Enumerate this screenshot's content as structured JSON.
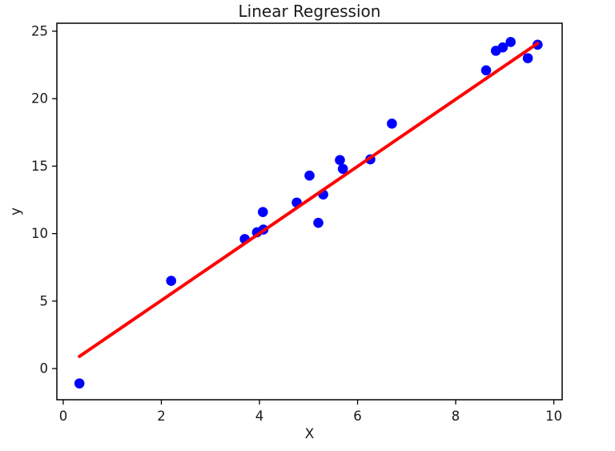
{
  "chart_data": {
    "type": "scatter",
    "title": "Linear Regression",
    "xlabel": "X",
    "ylabel": "y",
    "xlim": [
      -0.13,
      10.17
    ],
    "ylim": [
      -2.31,
      25.59
    ],
    "xticks": [
      0,
      2,
      4,
      6,
      8,
      10
    ],
    "yticks": [
      0,
      5,
      10,
      15,
      20,
      25
    ],
    "grid": false,
    "legend": null,
    "background_color": "#ffffff",
    "frame_color": "#000000",
    "text_color": "#1a1a1a",
    "series": [
      {
        "name": "data points",
        "type": "scatter",
        "color": "#0000ff",
        "points": [
          [
            0.33,
            -1.1
          ],
          [
            2.2,
            6.5
          ],
          [
            3.7,
            9.6
          ],
          [
            3.95,
            10.1
          ],
          [
            4.08,
            10.3
          ],
          [
            4.07,
            11.6
          ],
          [
            4.76,
            12.3
          ],
          [
            5.02,
            14.3
          ],
          [
            5.2,
            10.8
          ],
          [
            5.3,
            12.9
          ],
          [
            5.64,
            15.45
          ],
          [
            5.7,
            14.8
          ],
          [
            6.26,
            15.5
          ],
          [
            6.7,
            18.15
          ],
          [
            8.62,
            22.1
          ],
          [
            8.82,
            23.55
          ],
          [
            8.96,
            23.8
          ],
          [
            9.12,
            24.2
          ],
          [
            9.47,
            23.0
          ],
          [
            9.67,
            24.0
          ]
        ]
      },
      {
        "name": "fitted line",
        "type": "line",
        "color": "#ff0000",
        "points": [
          [
            0.33,
            0.9
          ],
          [
            9.67,
            24.1
          ]
        ]
      }
    ]
  }
}
